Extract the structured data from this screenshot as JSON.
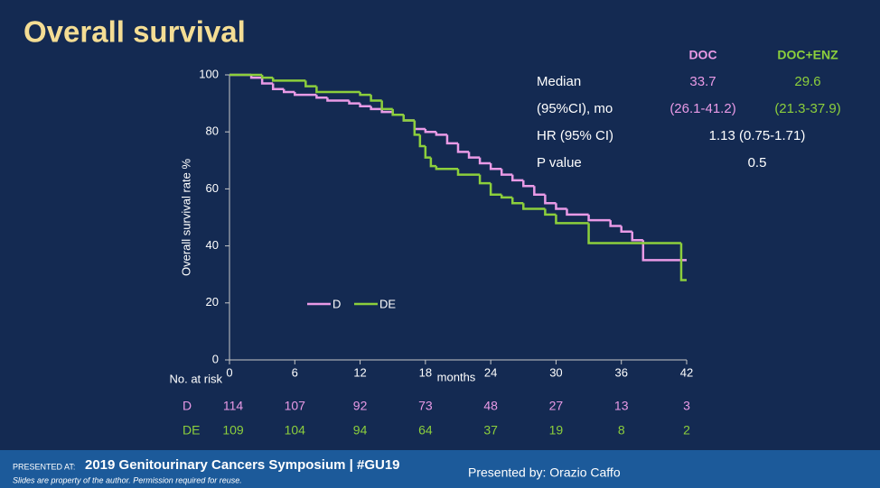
{
  "title": "Overall survival",
  "chart_data": {
    "type": "step",
    "ylabel": "Overall survival rate %",
    "xlabel": "months",
    "xlim": [
      0,
      42
    ],
    "xticks": [
      0,
      6,
      12,
      18,
      24,
      30,
      36,
      42
    ],
    "ylim": [
      0,
      100
    ],
    "yticks": [
      0,
      20,
      40,
      60,
      80,
      100
    ],
    "grid": false,
    "series": [
      {
        "name": "D",
        "color": "#e99ae6",
        "x": [
          0,
          2,
          3,
          4,
          5,
          6,
          8,
          9,
          11,
          12,
          13,
          14,
          15,
          16,
          17,
          18,
          19,
          20,
          21,
          22,
          23,
          24,
          25,
          26,
          27,
          28,
          29,
          30,
          31,
          33,
          35,
          36,
          37,
          38,
          42
        ],
        "values": [
          100,
          99,
          97,
          95,
          94,
          93,
          92,
          91,
          90,
          89,
          88,
          87,
          86,
          84,
          81,
          80,
          79,
          76,
          73,
          71,
          69,
          67,
          65,
          63,
          61,
          58,
          55,
          53,
          51,
          49,
          47,
          45,
          42,
          35,
          35
        ]
      },
      {
        "name": "DE",
        "color": "#8ccf3c",
        "x": [
          0,
          3,
          4,
          7,
          8,
          12,
          13,
          14,
          15,
          16,
          17,
          17.5,
          18,
          18.5,
          19,
          21,
          23,
          24,
          25,
          26,
          27,
          29,
          30,
          33,
          41.5,
          42
        ],
        "values": [
          100,
          99,
          98,
          96,
          94,
          93,
          91,
          88,
          86,
          84,
          79,
          75,
          71,
          68,
          67,
          65,
          62,
          58,
          57,
          55,
          53,
          51,
          48,
          41,
          28,
          28
        ]
      }
    ],
    "risk_table": {
      "label": "No. at risk",
      "rows": [
        {
          "name": "D",
          "color": "#e99ae6",
          "values": [
            114,
            107,
            92,
            73,
            48,
            27,
            13,
            3
          ]
        },
        {
          "name": "DE",
          "color": "#8ccf3c",
          "values": [
            109,
            104,
            94,
            64,
            37,
            19,
            8,
            2
          ]
        }
      ]
    }
  },
  "stats_table": {
    "columns": [
      {
        "label": "DOC",
        "color": "#e99ae6"
      },
      {
        "label": "DOC+ENZ",
        "color": "#8ccf3c"
      }
    ],
    "rows": [
      {
        "label": "Median",
        "values": [
          33.7,
          29.6
        ]
      },
      {
        "label": "(95%CI), mo",
        "values": [
          "(26.1-41.2)",
          "(21.3-37.9)"
        ]
      },
      {
        "label": "HR (95% CI)",
        "values": [
          "1.13 (0.75-1.71)"
        ]
      },
      {
        "label": "P value",
        "values": [
          0.5
        ]
      }
    ]
  },
  "footer": {
    "presented_at": "PRESENTED AT:",
    "meeting": "2019 Genitourinary Cancers Symposium  |  #GU19",
    "disclaimer": "Slides are property of the author. Permission required for reuse.",
    "presenter": "Presented by: Orazio Caffo"
  }
}
